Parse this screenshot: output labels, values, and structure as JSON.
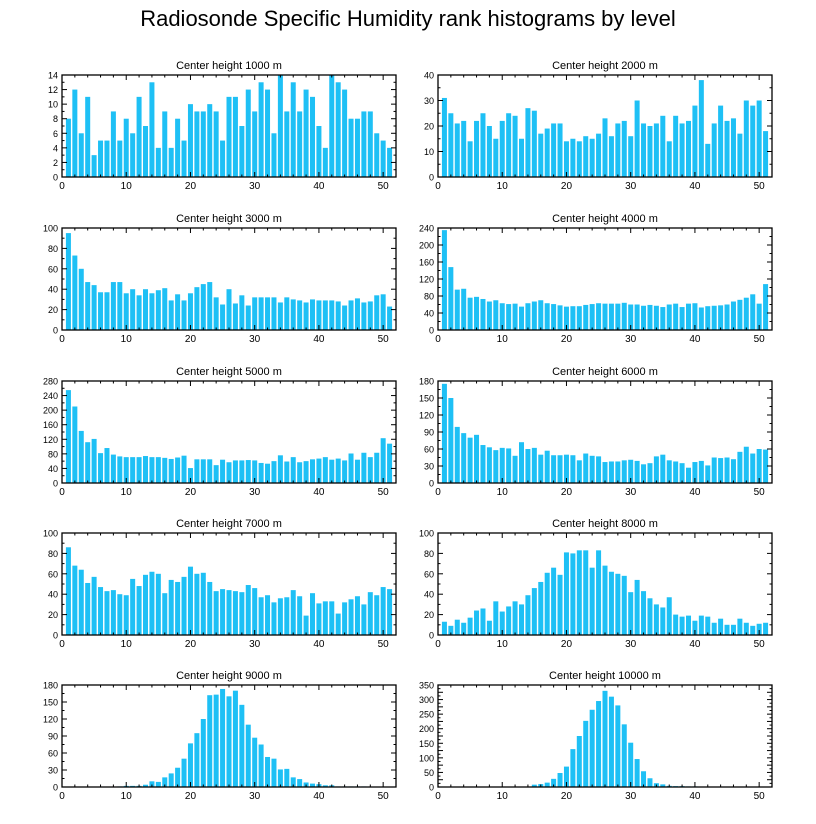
{
  "figure": {
    "title": "Radiosonde Specific Humidity rank histograms by level",
    "bar_color": "#1ec0f5"
  },
  "chart_data": [
    {
      "type": "bar",
      "title": "Center height 1000 m",
      "xlim": [
        0,
        52
      ],
      "ylim": [
        0,
        14
      ],
      "xticks": [
        0,
        10,
        20,
        30,
        40,
        50
      ],
      "yticks": [
        0,
        2,
        4,
        6,
        8,
        10,
        12,
        14
      ],
      "categories": [
        1,
        2,
        3,
        4,
        5,
        6,
        7,
        8,
        9,
        10,
        11,
        12,
        13,
        14,
        15,
        16,
        17,
        18,
        19,
        20,
        21,
        22,
        23,
        24,
        25,
        26,
        27,
        28,
        29,
        30,
        31,
        32,
        33,
        34,
        35,
        36,
        37,
        38,
        39,
        40,
        41,
        42,
        43,
        44,
        45,
        46,
        47,
        48,
        49,
        50,
        51
      ],
      "values": [
        8,
        12,
        6,
        11,
        3,
        5,
        5,
        9,
        5,
        8,
        6,
        11,
        7,
        13,
        4,
        9,
        4,
        8,
        5,
        10,
        9,
        9,
        10,
        9,
        5,
        11,
        11,
        7,
        12,
        9,
        13,
        12,
        6,
        14,
        9,
        13,
        9,
        12,
        11,
        7,
        4,
        14,
        13,
        12,
        8,
        8,
        9,
        9,
        6,
        5,
        4
      ]
    },
    {
      "type": "bar",
      "title": "Center height 2000 m",
      "xlim": [
        0,
        52
      ],
      "ylim": [
        0,
        40
      ],
      "xticks": [
        0,
        10,
        20,
        30,
        40,
        50
      ],
      "yticks": [
        0,
        10,
        20,
        30,
        40
      ],
      "categories": [
        1,
        2,
        3,
        4,
        5,
        6,
        7,
        8,
        9,
        10,
        11,
        12,
        13,
        14,
        15,
        16,
        17,
        18,
        19,
        20,
        21,
        22,
        23,
        24,
        25,
        26,
        27,
        28,
        29,
        30,
        31,
        32,
        33,
        34,
        35,
        36,
        37,
        38,
        39,
        40,
        41,
        42,
        43,
        44,
        45,
        46,
        47,
        48,
        49,
        50,
        51
      ],
      "values": [
        31,
        25,
        21,
        22,
        14,
        22,
        25,
        20,
        15,
        22,
        25,
        24,
        15,
        27,
        26,
        17,
        19,
        21,
        21,
        14,
        15,
        14,
        16,
        15,
        17,
        23,
        16,
        21,
        22,
        16,
        30,
        21,
        20,
        21,
        24,
        14,
        24,
        21,
        22,
        28,
        38,
        13,
        21,
        28,
        22,
        23,
        17,
        30,
        28,
        30,
        18
      ]
    },
    {
      "type": "bar",
      "title": "Center height 3000 m",
      "xlim": [
        0,
        52
      ],
      "ylim": [
        0,
        100
      ],
      "xticks": [
        0,
        10,
        20,
        30,
        40,
        50
      ],
      "yticks": [
        0,
        20,
        40,
        60,
        80,
        100
      ],
      "categories": [
        1,
        2,
        3,
        4,
        5,
        6,
        7,
        8,
        9,
        10,
        11,
        12,
        13,
        14,
        15,
        16,
        17,
        18,
        19,
        20,
        21,
        22,
        23,
        24,
        25,
        26,
        27,
        28,
        29,
        30,
        31,
        32,
        33,
        34,
        35,
        36,
        37,
        38,
        39,
        40,
        41,
        42,
        43,
        44,
        45,
        46,
        47,
        48,
        49,
        50,
        51
      ],
      "values": [
        95,
        73,
        60,
        47,
        44,
        37,
        37,
        47,
        47,
        36,
        40,
        34,
        40,
        36,
        39,
        41,
        29,
        35,
        29,
        36,
        42,
        45,
        47,
        32,
        25,
        40,
        26,
        34,
        24,
        32,
        32,
        32,
        32,
        27,
        32,
        30,
        29,
        27,
        30,
        29,
        29,
        29,
        28,
        24,
        29,
        31,
        27,
        28,
        34,
        35,
        23
      ]
    },
    {
      "type": "bar",
      "title": "Center height 4000 m",
      "xlim": [
        0,
        52
      ],
      "ylim": [
        0,
        240
      ],
      "xticks": [
        0,
        10,
        20,
        30,
        40,
        50
      ],
      "yticks": [
        0,
        40,
        80,
        120,
        160,
        200,
        240
      ],
      "categories": [
        1,
        2,
        3,
        4,
        5,
        6,
        7,
        8,
        9,
        10,
        11,
        12,
        13,
        14,
        15,
        16,
        17,
        18,
        19,
        20,
        21,
        22,
        23,
        24,
        25,
        26,
        27,
        28,
        29,
        30,
        31,
        32,
        33,
        34,
        35,
        36,
        37,
        38,
        39,
        40,
        41,
        42,
        43,
        44,
        45,
        46,
        47,
        48,
        49,
        50,
        51
      ],
      "values": [
        235,
        148,
        95,
        97,
        76,
        78,
        73,
        67,
        70,
        63,
        61,
        62,
        55,
        63,
        67,
        70,
        63,
        61,
        58,
        55,
        56,
        56,
        59,
        61,
        63,
        62,
        62,
        62,
        64,
        60,
        60,
        57,
        59,
        57,
        54,
        60,
        62,
        54,
        62,
        63,
        53,
        56,
        57,
        58,
        60,
        67,
        71,
        76,
        84,
        62,
        108
      ]
    },
    {
      "type": "bar",
      "title": "Center height 5000 m",
      "xlim": [
        0,
        52
      ],
      "ylim": [
        0,
        280
      ],
      "xticks": [
        0,
        10,
        20,
        30,
        40,
        50
      ],
      "yticks": [
        0,
        40,
        80,
        120,
        160,
        200,
        240,
        280
      ],
      "categories": [
        1,
        2,
        3,
        4,
        5,
        6,
        7,
        8,
        9,
        10,
        11,
        12,
        13,
        14,
        15,
        16,
        17,
        18,
        19,
        20,
        21,
        22,
        23,
        24,
        25,
        26,
        27,
        28,
        29,
        30,
        31,
        32,
        33,
        34,
        35,
        36,
        37,
        38,
        39,
        40,
        41,
        42,
        43,
        44,
        45,
        46,
        47,
        48,
        49,
        50,
        51
      ],
      "values": [
        255,
        210,
        143,
        112,
        121,
        82,
        96,
        78,
        73,
        71,
        71,
        71,
        74,
        71,
        71,
        69,
        66,
        70,
        75,
        41,
        65,
        65,
        65,
        49,
        64,
        57,
        62,
        62,
        63,
        62,
        55,
        53,
        60,
        76,
        59,
        71,
        57,
        60,
        65,
        67,
        71,
        64,
        67,
        62,
        81,
        64,
        83,
        71,
        83,
        123,
        108
      ]
    },
    {
      "type": "bar",
      "title": "Center height 6000 m",
      "xlim": [
        0,
        52
      ],
      "ylim": [
        0,
        180
      ],
      "xticks": [
        0,
        10,
        20,
        30,
        40,
        50
      ],
      "yticks": [
        0,
        30,
        60,
        90,
        120,
        150,
        180
      ],
      "categories": [
        1,
        2,
        3,
        4,
        5,
        6,
        7,
        8,
        9,
        10,
        11,
        12,
        13,
        14,
        15,
        16,
        17,
        18,
        19,
        20,
        21,
        22,
        23,
        24,
        25,
        26,
        27,
        28,
        29,
        30,
        31,
        32,
        33,
        34,
        35,
        36,
        37,
        38,
        39,
        40,
        41,
        42,
        43,
        44,
        45,
        46,
        47,
        48,
        49,
        50,
        51
      ],
      "values": [
        175,
        150,
        99,
        88,
        80,
        85,
        67,
        63,
        58,
        62,
        61,
        48,
        72,
        60,
        62,
        50,
        57,
        49,
        49,
        50,
        49,
        40,
        52,
        48,
        47,
        37,
        38,
        38,
        40,
        41,
        39,
        33,
        35,
        47,
        50,
        40,
        38,
        35,
        27,
        37,
        39,
        31,
        45,
        44,
        45,
        42,
        55,
        64,
        52,
        60,
        59
      ]
    },
    {
      "type": "bar",
      "title": "Center height 7000 m",
      "xlim": [
        0,
        52
      ],
      "ylim": [
        0,
        100
      ],
      "xticks": [
        0,
        10,
        20,
        30,
        40,
        50
      ],
      "yticks": [
        0,
        20,
        40,
        60,
        80,
        100
      ],
      "categories": [
        1,
        2,
        3,
        4,
        5,
        6,
        7,
        8,
        9,
        10,
        11,
        12,
        13,
        14,
        15,
        16,
        17,
        18,
        19,
        20,
        21,
        22,
        23,
        24,
        25,
        26,
        27,
        28,
        29,
        30,
        31,
        32,
        33,
        34,
        35,
        36,
        37,
        38,
        39,
        40,
        41,
        42,
        43,
        44,
        45,
        46,
        47,
        48,
        49,
        50,
        51
      ],
      "values": [
        86,
        68,
        64,
        51,
        57,
        47,
        43,
        44,
        40,
        39,
        55,
        48,
        59,
        62,
        60,
        41,
        54,
        52,
        57,
        67,
        60,
        61,
        52,
        43,
        45,
        44,
        43,
        42,
        49,
        46,
        37,
        39,
        32,
        36,
        37,
        44,
        38,
        19,
        41,
        31,
        33,
        33,
        21,
        32,
        35,
        38,
        30,
        42,
        39,
        47,
        45
      ]
    },
    {
      "type": "bar",
      "title": "Center height 8000 m",
      "xlim": [
        0,
        52
      ],
      "ylim": [
        0,
        100
      ],
      "xticks": [
        0,
        10,
        20,
        30,
        40,
        50
      ],
      "yticks": [
        0,
        20,
        40,
        60,
        80,
        100
      ],
      "categories": [
        1,
        2,
        3,
        4,
        5,
        6,
        7,
        8,
        9,
        10,
        11,
        12,
        13,
        14,
        15,
        16,
        17,
        18,
        19,
        20,
        21,
        22,
        23,
        24,
        25,
        26,
        27,
        28,
        29,
        30,
        31,
        32,
        33,
        34,
        35,
        36,
        37,
        38,
        39,
        40,
        41,
        42,
        43,
        44,
        45,
        46,
        47,
        48,
        49,
        50,
        51
      ],
      "values": [
        13,
        9,
        15,
        12,
        17,
        24,
        26,
        14,
        33,
        23,
        28,
        33,
        30,
        39,
        46,
        52,
        61,
        66,
        59,
        81,
        80,
        83,
        83,
        66,
        83,
        68,
        62,
        60,
        58,
        42,
        54,
        43,
        36,
        30,
        27,
        37,
        20,
        18,
        19,
        14,
        19,
        18,
        12,
        16,
        10,
        10,
        16,
        12,
        9,
        11,
        12
      ]
    },
    {
      "type": "bar",
      "title": "Center height 9000 m",
      "xlim": [
        0,
        52
      ],
      "ylim": [
        0,
        180
      ],
      "xticks": [
        0,
        10,
        20,
        30,
        40,
        50
      ],
      "yticks": [
        0,
        30,
        60,
        90,
        120,
        150,
        180
      ],
      "categories": [
        1,
        2,
        3,
        4,
        5,
        6,
        7,
        8,
        9,
        10,
        11,
        12,
        13,
        14,
        15,
        16,
        17,
        18,
        19,
        20,
        21,
        22,
        23,
        24,
        25,
        26,
        27,
        28,
        29,
        30,
        31,
        32,
        33,
        34,
        35,
        36,
        37,
        38,
        39,
        40,
        41,
        42,
        43,
        44,
        45,
        46,
        47,
        48,
        49,
        50,
        51
      ],
      "values": [
        0,
        0,
        0,
        0,
        0,
        0,
        0,
        0,
        1,
        2,
        2,
        2,
        4,
        10,
        9,
        17,
        24,
        34,
        50,
        77,
        95,
        120,
        162,
        163,
        173,
        160,
        170,
        145,
        110,
        87,
        75,
        53,
        50,
        31,
        32,
        17,
        14,
        8,
        6,
        5,
        3,
        3,
        1,
        1,
        1,
        1,
        1,
        0,
        0,
        0,
        0
      ]
    },
    {
      "type": "bar",
      "title": "Center height 10000 m",
      "xlim": [
        0,
        52
      ],
      "ylim": [
        0,
        350
      ],
      "xticks": [
        0,
        10,
        20,
        30,
        40,
        50
      ],
      "yticks": [
        0,
        25,
        50,
        75,
        100,
        125,
        150,
        175,
        200,
        225,
        250,
        275,
        300,
        325,
        350
      ],
      "ytick_labels": [
        "0",
        "",
        "50",
        "",
        "100",
        "",
        "150",
        "",
        "200",
        "",
        "250",
        "",
        "300",
        "",
        "350"
      ],
      "categories": [
        1,
        2,
        3,
        4,
        5,
        6,
        7,
        8,
        9,
        10,
        11,
        12,
        13,
        14,
        15,
        16,
        17,
        18,
        19,
        20,
        21,
        22,
        23,
        24,
        25,
        26,
        27,
        28,
        29,
        30,
        31,
        32,
        33,
        34,
        35,
        36,
        37,
        38,
        39,
        40,
        41,
        42,
        43,
        44,
        45,
        46,
        47,
        48,
        49,
        50,
        51
      ],
      "values": [
        0,
        0,
        0,
        0,
        0,
        0,
        0,
        0,
        0,
        0,
        0,
        0,
        0,
        0,
        8,
        10,
        15,
        28,
        48,
        70,
        130,
        175,
        227,
        265,
        295,
        330,
        310,
        280,
        215,
        152,
        96,
        54,
        30,
        13,
        9,
        4,
        3,
        3,
        2,
        2,
        1,
        1,
        1,
        1,
        1,
        0,
        0,
        0,
        0,
        0,
        0
      ]
    }
  ]
}
